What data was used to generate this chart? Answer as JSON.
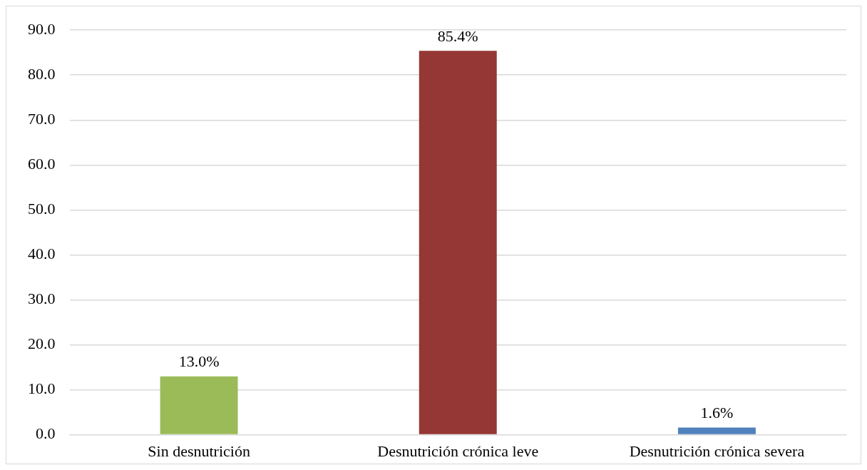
{
  "chart_data": {
    "type": "bar",
    "categories": [
      "Sin desnutrición",
      "Desnutrición crónica leve",
      "Desnutrición crónica severa"
    ],
    "values": [
      13.0,
      85.4,
      1.6
    ],
    "colors": [
      "#9bbb59",
      "#953735",
      "#4f81bd"
    ],
    "value_labels": [
      "13.0%",
      "85.4%",
      "1.6%"
    ],
    "ylim": [
      0,
      90
    ],
    "yticks": [
      {
        "value": 0,
        "label": "0.0"
      },
      {
        "value": 10,
        "label": "10.0"
      },
      {
        "value": 20,
        "label": "20.0"
      },
      {
        "value": 30,
        "label": "30.0"
      },
      {
        "value": 40,
        "label": "40.0"
      },
      {
        "value": 50,
        "label": "50.0"
      },
      {
        "value": 60,
        "label": "60.0"
      },
      {
        "value": 70,
        "label": "70.0"
      },
      {
        "value": 80,
        "label": "80.0"
      },
      {
        "value": 90,
        "label": "90.0"
      }
    ],
    "grid": "y",
    "legend": false
  }
}
